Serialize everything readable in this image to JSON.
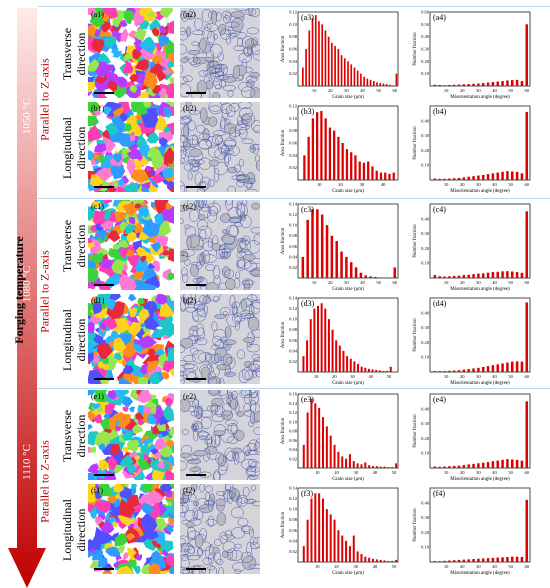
{
  "vertical_title": "Forging temperature",
  "temperatures": [
    "1050 °C",
    "1080 °C",
    "1110 °C"
  ],
  "parallel_label": "Parallel to Z-axis",
  "direction_transverse": "Transverse\ndirection",
  "direction_longitudinal": "Longitudinal\ndirection",
  "colors": {
    "arrow_top": "#ffe5e5",
    "arrow_bottom": "#c00000",
    "bar": "#dd0000",
    "accent": "#c00000"
  },
  "rows": [
    {
      "map_label": "(a1)",
      "micro_label": "(a2)",
      "grain_label": "(a3)",
      "mis_label": "(a4)"
    },
    {
      "map_label": "(b1)",
      "micro_label": "(b2)",
      "grain_label": "(b3)",
      "mis_label": "(b4)"
    },
    {
      "map_label": "(c1)",
      "micro_label": "(c2)",
      "grain_label": "(c3)",
      "mis_label": "(c4)"
    },
    {
      "map_label": "(d1)",
      "micro_label": "(d2)",
      "grain_label": "(d3)",
      "mis_label": "(d4)"
    },
    {
      "map_label": "(e1)",
      "micro_label": "(e2)",
      "grain_label": "(e3)",
      "mis_label": "(e4)"
    },
    {
      "map_label": "(f1)",
      "micro_label": "(f2)",
      "grain_label": "(f3)",
      "mis_label": "(f4)"
    }
  ],
  "chart_data": [
    {
      "type": "bar",
      "id": "a3",
      "xlabel": "Grain size (μm)",
      "ylabel": "Area fraction",
      "xlim": [
        0,
        62
      ],
      "ylim": [
        0,
        0.12
      ],
      "xticks": [
        10,
        20,
        30,
        40,
        50,
        60
      ],
      "yticks": [
        0.02,
        0.04,
        0.06,
        0.08,
        0.1,
        0.12
      ],
      "x": [
        3,
        5,
        7,
        9,
        11,
        13,
        15,
        17,
        19,
        21,
        23,
        25,
        27,
        29,
        31,
        33,
        35,
        37,
        39,
        41,
        43,
        45,
        47,
        49,
        51,
        53,
        55,
        57,
        59,
        61
      ],
      "y": [
        0.03,
        0.06,
        0.09,
        0.11,
        0.115,
        0.105,
        0.1,
        0.09,
        0.08,
        0.07,
        0.065,
        0.06,
        0.05,
        0.045,
        0.04,
        0.035,
        0.03,
        0.025,
        0.02,
        0.015,
        0.012,
        0.01,
        0.008,
        0.006,
        0.005,
        0.004,
        0.003,
        0.002,
        0.001,
        0.02
      ]
    },
    {
      "type": "bar",
      "id": "a4",
      "xlabel": "Misorientation angle (degree)",
      "ylabel": "Number fraction",
      "xlim": [
        0,
        62
      ],
      "ylim": [
        0,
        0.6
      ],
      "xticks": [
        10,
        20,
        30,
        40,
        50,
        60
      ],
      "yticks": [
        0.1,
        0.2,
        0.3,
        0.4,
        0.5,
        0.6
      ],
      "x": [
        3,
        6,
        9,
        12,
        15,
        18,
        21,
        24,
        27,
        30,
        33,
        36,
        39,
        42,
        45,
        48,
        51,
        54,
        57,
        60
      ],
      "y": [
        0.01,
        0.008,
        0.006,
        0.008,
        0.01,
        0.012,
        0.014,
        0.016,
        0.018,
        0.02,
        0.024,
        0.028,
        0.032,
        0.036,
        0.04,
        0.045,
        0.048,
        0.05,
        0.04,
        0.5
      ]
    },
    {
      "type": "bar",
      "id": "b3",
      "xlabel": "Grain size (μm)",
      "ylabel": "Area fraction",
      "xlim": [
        0,
        47
      ],
      "ylim": [
        0,
        0.12
      ],
      "xticks": [
        10,
        20,
        30,
        40
      ],
      "yticks": [
        0.02,
        0.04,
        0.06,
        0.08,
        0.1,
        0.12
      ],
      "x": [
        3,
        5,
        7,
        9,
        11,
        13,
        15,
        17,
        19,
        21,
        23,
        25,
        27,
        29,
        31,
        33,
        35,
        37,
        39,
        41,
        43,
        45
      ],
      "y": [
        0.04,
        0.07,
        0.1,
        0.11,
        0.112,
        0.1,
        0.085,
        0.08,
        0.07,
        0.06,
        0.05,
        0.045,
        0.04,
        0.03,
        0.028,
        0.03,
        0.022,
        0.015,
        0.012,
        0.012,
        0.01,
        0.012
      ]
    },
    {
      "type": "bar",
      "id": "b4",
      "xlabel": "Misorientation angle (degree)",
      "ylabel": "Number fraction",
      "xlim": [
        0,
        62
      ],
      "ylim": [
        0,
        0.5
      ],
      "xticks": [
        10,
        20,
        30,
        40,
        50,
        60
      ],
      "yticks": [
        0.1,
        0.2,
        0.3,
        0.4
      ],
      "x": [
        3,
        6,
        9,
        12,
        15,
        18,
        21,
        24,
        27,
        30,
        33,
        36,
        39,
        42,
        45,
        48,
        51,
        54,
        57,
        60
      ],
      "y": [
        0.01,
        0.008,
        0.008,
        0.01,
        0.012,
        0.014,
        0.018,
        0.022,
        0.026,
        0.03,
        0.034,
        0.04,
        0.045,
        0.05,
        0.055,
        0.06,
        0.058,
        0.055,
        0.045,
        0.46
      ]
    },
    {
      "type": "bar",
      "id": "c3",
      "xlabel": "Grain size (μm)",
      "ylabel": "Area fraction",
      "xlim": [
        0,
        62
      ],
      "ylim": [
        0,
        0.14
      ],
      "xticks": [
        10,
        20,
        30,
        40,
        50,
        60
      ],
      "yticks": [
        0.02,
        0.04,
        0.06,
        0.08,
        0.1,
        0.12,
        0.14
      ],
      "x": [
        3,
        6,
        9,
        12,
        15,
        18,
        21,
        24,
        27,
        30,
        33,
        36,
        39,
        42,
        45,
        48,
        51,
        54,
        57,
        60
      ],
      "y": [
        0.04,
        0.11,
        0.13,
        0.13,
        0.12,
        0.1,
        0.08,
        0.07,
        0.05,
        0.04,
        0.03,
        0.02,
        0.01,
        0.005,
        0.003,
        0.002,
        0.001,
        0.001,
        0.001,
        0.02
      ]
    },
    {
      "type": "bar",
      "id": "c4",
      "xlabel": "Misorientation angle (degree)",
      "ylabel": "Number fraction",
      "xlim": [
        0,
        62
      ],
      "ylim": [
        0,
        0.5
      ],
      "xticks": [
        10,
        20,
        30,
        40,
        50,
        60
      ],
      "yticks": [
        0.1,
        0.2,
        0.3,
        0.4
      ],
      "x": [
        3,
        6,
        9,
        12,
        15,
        18,
        21,
        24,
        27,
        30,
        33,
        36,
        39,
        42,
        45,
        48,
        51,
        54,
        57,
        60
      ],
      "y": [
        0.02,
        0.012,
        0.01,
        0.012,
        0.014,
        0.016,
        0.02,
        0.022,
        0.026,
        0.03,
        0.032,
        0.036,
        0.04,
        0.042,
        0.045,
        0.046,
        0.044,
        0.04,
        0.035,
        0.45
      ]
    },
    {
      "type": "bar",
      "id": "d3",
      "xlabel": "Grain size (μm)",
      "ylabel": "Area fraction",
      "xlim": [
        0,
        55
      ],
      "ylim": [
        0,
        0.14
      ],
      "xticks": [
        10,
        20,
        30,
        40,
        50
      ],
      "yticks": [
        0.02,
        0.04,
        0.06,
        0.08,
        0.1,
        0.12,
        0.14
      ],
      "x": [
        3,
        5,
        7,
        9,
        11,
        13,
        15,
        17,
        19,
        21,
        23,
        25,
        27,
        29,
        31,
        33,
        35,
        37,
        39,
        41,
        43,
        45,
        47,
        49,
        51
      ],
      "y": [
        0.03,
        0.06,
        0.1,
        0.12,
        0.125,
        0.13,
        0.12,
        0.1,
        0.08,
        0.06,
        0.05,
        0.04,
        0.03,
        0.025,
        0.02,
        0.015,
        0.01,
        0.008,
        0.006,
        0.005,
        0.004,
        0.003,
        0.002,
        0.002,
        0.01
      ]
    },
    {
      "type": "bar",
      "id": "d4",
      "xlabel": "Misorientation angle (degree)",
      "ylabel": "Number fraction",
      "xlim": [
        0,
        62
      ],
      "ylim": [
        0,
        0.5
      ],
      "xticks": [
        10,
        20,
        30,
        40,
        50,
        60
      ],
      "yticks": [
        0.1,
        0.2,
        0.3,
        0.4
      ],
      "x": [
        3,
        6,
        9,
        12,
        15,
        18,
        21,
        24,
        27,
        30,
        33,
        36,
        39,
        42,
        45,
        48,
        51,
        54,
        57,
        60
      ],
      "y": [
        0.006,
        0.006,
        0.006,
        0.008,
        0.01,
        0.012,
        0.016,
        0.02,
        0.024,
        0.028,
        0.034,
        0.04,
        0.046,
        0.052,
        0.058,
        0.064,
        0.07,
        0.072,
        0.07,
        0.47
      ]
    },
    {
      "type": "bar",
      "id": "e3",
      "xlabel": "Grain size (μm)",
      "ylabel": "Area fraction",
      "xlim": [
        0,
        52
      ],
      "ylim": [
        0,
        0.16
      ],
      "xticks": [
        10,
        20,
        30,
        40,
        50
      ],
      "yticks": [
        0.02,
        0.04,
        0.06,
        0.08,
        0.1,
        0.12,
        0.14,
        0.16
      ],
      "x": [
        3,
        5,
        7,
        9,
        11,
        13,
        15,
        17,
        19,
        21,
        23,
        25,
        27,
        29,
        31,
        33,
        35,
        37,
        39,
        41,
        43,
        45,
        47,
        49,
        51
      ],
      "y": [
        0.05,
        0.12,
        0.15,
        0.14,
        0.13,
        0.11,
        0.09,
        0.07,
        0.05,
        0.035,
        0.025,
        0.02,
        0.03,
        0.015,
        0.01,
        0.008,
        0.012,
        0.006,
        0.004,
        0.004,
        0.003,
        0.003,
        0.002,
        0.002,
        0.01
      ]
    },
    {
      "type": "bar",
      "id": "e4",
      "xlabel": "Misorientation angle (degree)",
      "ylabel": "Number fraction",
      "xlim": [
        0,
        62
      ],
      "ylim": [
        0,
        0.5
      ],
      "xticks": [
        10,
        20,
        30,
        40,
        50,
        60
      ],
      "yticks": [
        0.1,
        0.2,
        0.3,
        0.4
      ],
      "x": [
        3,
        6,
        9,
        12,
        15,
        18,
        21,
        24,
        27,
        30,
        33,
        36,
        39,
        42,
        45,
        48,
        51,
        54,
        57,
        60
      ],
      "y": [
        0.01,
        0.008,
        0.01,
        0.012,
        0.014,
        0.016,
        0.02,
        0.024,
        0.028,
        0.032,
        0.036,
        0.04,
        0.046,
        0.05,
        0.055,
        0.06,
        0.058,
        0.055,
        0.05,
        0.45
      ]
    },
    {
      "type": "bar",
      "id": "f3",
      "xlabel": "Grain size (μm)",
      "ylabel": "Area fraction",
      "xlim": [
        0,
        52
      ],
      "ylim": [
        0,
        0.14
      ],
      "xticks": [
        10,
        20,
        30,
        40,
        50
      ],
      "yticks": [
        0.02,
        0.04,
        0.06,
        0.08,
        0.1,
        0.12,
        0.14
      ],
      "x": [
        3,
        5,
        7,
        9,
        11,
        13,
        15,
        17,
        19,
        21,
        23,
        25,
        27,
        29,
        31,
        33,
        35,
        37,
        39,
        41,
        43,
        45,
        47,
        49,
        51
      ],
      "y": [
        0.03,
        0.08,
        0.12,
        0.13,
        0.13,
        0.12,
        0.1,
        0.09,
        0.08,
        0.06,
        0.05,
        0.04,
        0.03,
        0.05,
        0.02,
        0.015,
        0.01,
        0.008,
        0.006,
        0.005,
        0.004,
        0.003,
        0.002,
        0.002,
        0.004
      ]
    },
    {
      "type": "bar",
      "id": "f4",
      "xlabel": "Misorientation angle (degree)",
      "ylabel": "Number fraction",
      "xlim": [
        0,
        62
      ],
      "ylim": [
        0,
        0.5
      ],
      "xticks": [
        10,
        20,
        30,
        40,
        50,
        60
      ],
      "yticks": [
        0.1,
        0.2,
        0.3,
        0.4
      ],
      "x": [
        3,
        6,
        9,
        12,
        15,
        18,
        21,
        24,
        27,
        30,
        33,
        36,
        39,
        42,
        45,
        48,
        51,
        54,
        57,
        60
      ],
      "y": [
        0.006,
        0.006,
        0.008,
        0.01,
        0.012,
        0.014,
        0.016,
        0.018,
        0.02,
        0.022,
        0.024,
        0.026,
        0.028,
        0.03,
        0.032,
        0.034,
        0.036,
        0.036,
        0.034,
        0.42
      ]
    }
  ]
}
